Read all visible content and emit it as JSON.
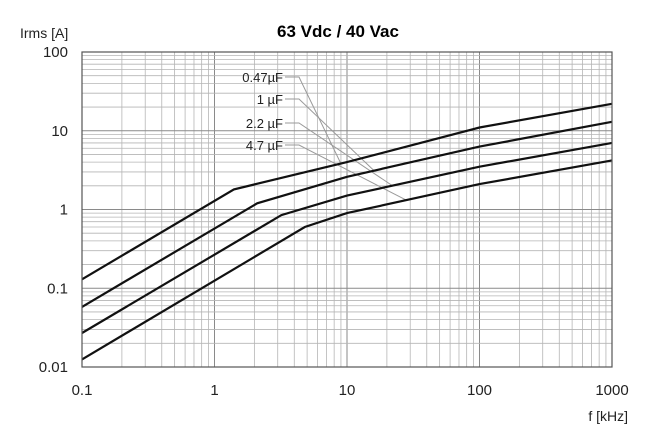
{
  "chart_data": {
    "type": "line",
    "title": "63 Vdc / 40 Vac",
    "xlabel": "f [kHz]",
    "ylabel": "Irms [A]",
    "x_scale": "log",
    "y_scale": "log",
    "xlim": [
      0.1,
      1000
    ],
    "ylim": [
      0.01,
      100
    ],
    "grid": true,
    "x_ticks": [
      "0.1",
      "1",
      "10",
      "100",
      "1000"
    ],
    "y_ticks": [
      "100",
      "10",
      "1",
      "0.1",
      "0.01"
    ],
    "series": [
      {
        "name": "0.47µF",
        "points": [
          [
            0.1,
            0.13
          ],
          [
            1.4,
            1.8
          ],
          [
            10,
            4.0
          ],
          [
            100,
            11
          ],
          [
            1000,
            22
          ]
        ]
      },
      {
        "name": "1 µF",
        "points": [
          [
            0.1,
            0.058
          ],
          [
            2.1,
            1.2
          ],
          [
            10,
            2.6
          ],
          [
            100,
            6.3
          ],
          [
            1000,
            13
          ]
        ]
      },
      {
        "name": "2.2 µF",
        "points": [
          [
            0.1,
            0.027
          ],
          [
            3.2,
            0.85
          ],
          [
            10,
            1.5
          ],
          [
            100,
            3.5
          ],
          [
            1000,
            7
          ]
        ]
      },
      {
        "name": "4.7 µF",
        "points": [
          [
            0.1,
            0.0125
          ],
          [
            4.8,
            0.6
          ],
          [
            10,
            0.9
          ],
          [
            100,
            2.1
          ],
          [
            1000,
            4.2
          ]
        ]
      }
    ]
  }
}
